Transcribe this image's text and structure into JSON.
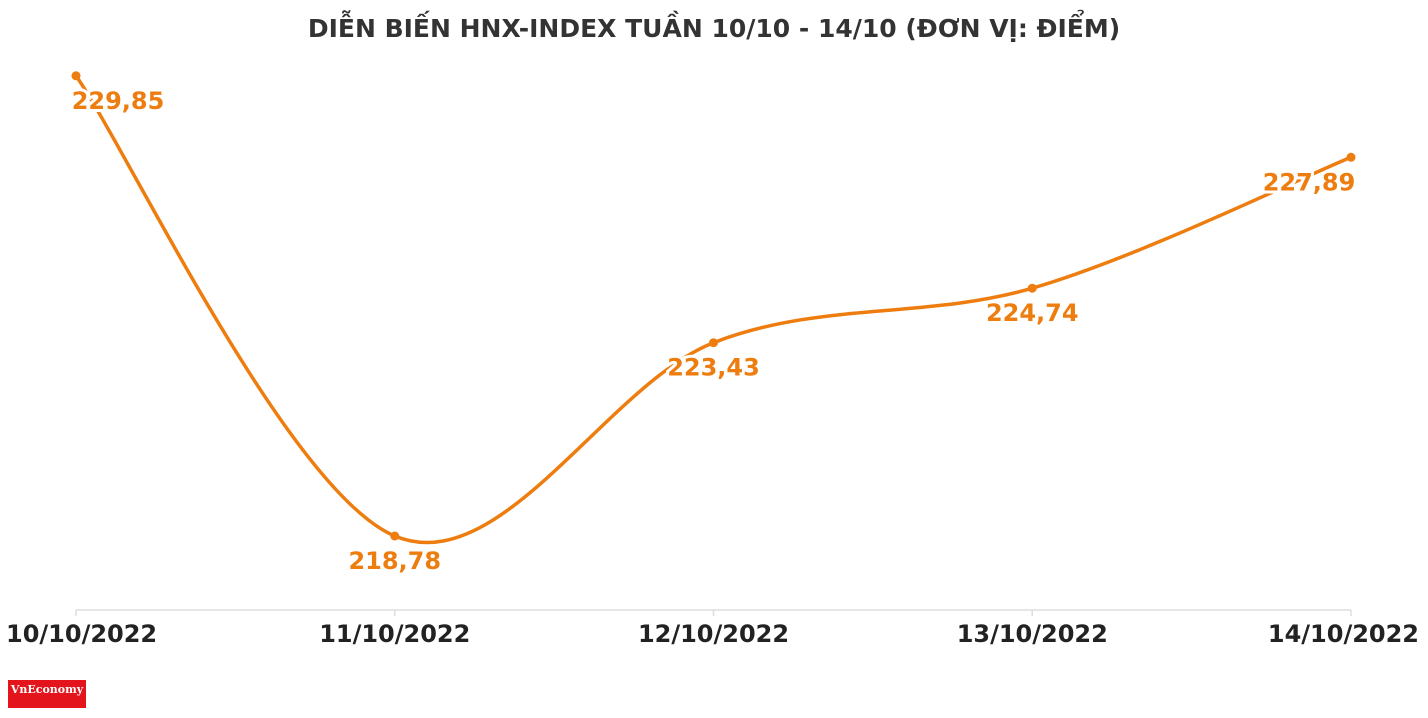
{
  "chart_data": {
    "type": "line",
    "title": "DIỄN BIẾN HNX-INDEX TUẦN 10/10 - 14/10 (ĐƠN VỊ: ĐIỂM)",
    "categories": [
      "10/10/2022",
      "11/10/2022",
      "12/10/2022",
      "13/10/2022",
      "14/10/2022"
    ],
    "series": [
      {
        "name": "HNX-Index",
        "color": "#ee7d10",
        "values": [
          229.85,
          218.78,
          223.43,
          224.74,
          227.89
        ],
        "value_labels": [
          "229,85",
          "218,78",
          "223,43",
          "224,74",
          "227,89"
        ]
      }
    ],
    "ylim": [
      217,
      231
    ],
    "logo": "VnEconomy"
  }
}
